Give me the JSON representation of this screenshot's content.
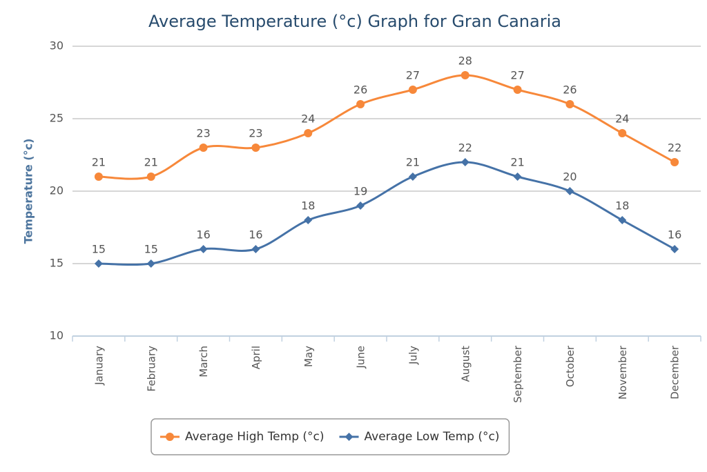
{
  "chart_data": {
    "type": "line",
    "title": "Average Temperature (°c) Graph for Gran Canaria",
    "y_label": "Temperature (°c)",
    "categories": [
      "January",
      "February",
      "March",
      "April",
      "May",
      "June",
      "July",
      "August",
      "September",
      "October",
      "November",
      "December"
    ],
    "series": [
      {
        "name": "Average High Temp (°c)",
        "color": "#f7883a",
        "marker": "circle",
        "values": [
          21,
          21,
          23,
          23,
          24,
          26,
          27,
          28,
          27,
          26,
          24,
          22
        ]
      },
      {
        "name": "Average Low Temp (°c)",
        "color": "#4572a7",
        "marker": "diamond",
        "values": [
          15,
          15,
          16,
          16,
          18,
          19,
          21,
          22,
          21,
          20,
          18,
          16
        ]
      }
    ],
    "ylim": [
      10,
      30
    ],
    "yticks": [
      10,
      15,
      20,
      25,
      30
    ],
    "grid": true,
    "smooth": true,
    "data_labels": true,
    "legend": "bottom"
  }
}
